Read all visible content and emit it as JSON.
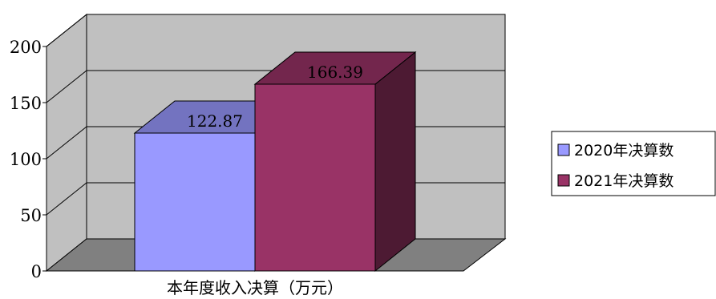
{
  "chart_data": {
    "type": "bar",
    "categories": [
      "本年度收入决算（万元）"
    ],
    "series": [
      {
        "name": "2020年决算数",
        "values": [
          122.87
        ],
        "label": "122.87"
      },
      {
        "name": "2021年决算数",
        "values": [
          166.39
        ],
        "label": "166.39"
      }
    ],
    "ylim": [
      0,
      200
    ],
    "yticks": [
      0,
      50,
      100,
      150,
      200
    ],
    "ytick_labels": [
      "0",
      "50",
      "100",
      "150",
      "200"
    ],
    "grid": true,
    "three_d": true,
    "legend_position": "right"
  },
  "colors": {
    "wall": "#c0c0c0",
    "floor": "#808080",
    "series_front": [
      "#9999ff",
      "#993366"
    ],
    "series_top": [
      "#7373c0",
      "#73264d"
    ],
    "series_side": [
      "#5c5c99",
      "#4d1a33"
    ]
  }
}
